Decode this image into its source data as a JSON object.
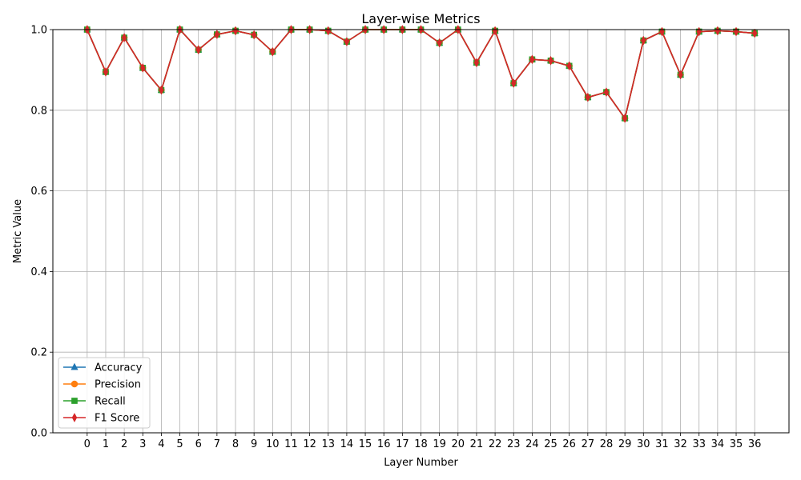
{
  "chart_data": {
    "type": "line",
    "title": "Layer-wise Metrics",
    "xlabel": "Layer Number",
    "ylabel": "Metric Value",
    "ylim": [
      0.0,
      1.0
    ],
    "yticks": [
      "0.0",
      "0.2",
      "0.4",
      "0.6",
      "0.8",
      "1.0"
    ],
    "grid": true,
    "legend_position": "lower-left",
    "x": [
      0,
      1,
      2,
      3,
      4,
      5,
      6,
      7,
      8,
      9,
      10,
      11,
      12,
      13,
      14,
      15,
      16,
      17,
      18,
      19,
      20,
      21,
      22,
      23,
      24,
      25,
      26,
      27,
      28,
      29,
      30,
      31,
      32,
      33,
      34,
      35,
      36
    ],
    "series": [
      {
        "name": "Accuracy",
        "color": "#1f77b4",
        "marker": "triangle-up",
        "values": [
          1.0,
          0.895,
          0.98,
          0.905,
          0.85,
          1.0,
          0.95,
          0.988,
          0.997,
          0.987,
          0.945,
          1.0,
          1.0,
          0.997,
          0.97,
          1.0,
          1.0,
          1.0,
          1.0,
          0.967,
          1.0,
          0.918,
          0.997,
          0.867,
          0.926,
          0.923,
          0.91,
          0.832,
          0.845,
          0.78,
          0.973,
          0.995,
          0.888,
          0.995,
          0.997,
          0.995,
          0.991
        ]
      },
      {
        "name": "Precision",
        "color": "#ff7f0e",
        "marker": "circle",
        "values": [
          1.0,
          0.895,
          0.98,
          0.905,
          0.85,
          1.0,
          0.95,
          0.988,
          0.997,
          0.987,
          0.945,
          1.0,
          1.0,
          0.997,
          0.97,
          1.0,
          1.0,
          1.0,
          1.0,
          0.967,
          1.0,
          0.918,
          0.997,
          0.867,
          0.926,
          0.923,
          0.91,
          0.832,
          0.845,
          0.78,
          0.973,
          0.995,
          0.888,
          0.995,
          0.997,
          0.995,
          0.991
        ]
      },
      {
        "name": "Recall",
        "color": "#2ca02c",
        "marker": "square",
        "values": [
          1.0,
          0.895,
          0.98,
          0.905,
          0.85,
          1.0,
          0.95,
          0.988,
          0.997,
          0.987,
          0.945,
          1.0,
          1.0,
          0.997,
          0.97,
          1.0,
          1.0,
          1.0,
          1.0,
          0.967,
          1.0,
          0.918,
          0.997,
          0.867,
          0.926,
          0.923,
          0.91,
          0.832,
          0.845,
          0.78,
          0.973,
          0.995,
          0.888,
          0.995,
          0.997,
          0.995,
          0.991
        ]
      },
      {
        "name": "F1 Score",
        "color": "#d62728",
        "marker": "thin-diamond",
        "values": [
          1.0,
          0.895,
          0.98,
          0.905,
          0.85,
          1.0,
          0.95,
          0.988,
          0.997,
          0.987,
          0.945,
          1.0,
          1.0,
          0.997,
          0.97,
          1.0,
          1.0,
          1.0,
          1.0,
          0.967,
          1.0,
          0.918,
          0.997,
          0.867,
          0.926,
          0.923,
          0.91,
          0.832,
          0.845,
          0.78,
          0.973,
          0.995,
          0.888,
          0.995,
          0.997,
          0.995,
          0.991
        ]
      }
    ]
  }
}
